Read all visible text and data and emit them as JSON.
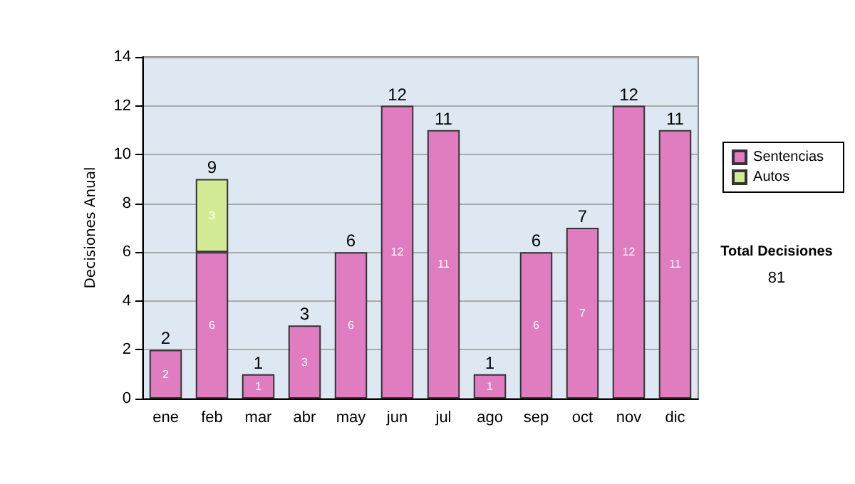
{
  "chart_data": {
    "type": "bar",
    "stacked": true,
    "ylabel": "Decisiones Anual",
    "categories": [
      "ene",
      "feb",
      "mar",
      "abr",
      "may",
      "jun",
      "jul",
      "ago",
      "sep",
      "oct",
      "nov",
      "dic"
    ],
    "series": [
      {
        "name": "Sentencias",
        "color": "#e07cc0",
        "values": [
          2,
          6,
          1,
          3,
          6,
          12,
          11,
          1,
          6,
          7,
          12,
          11
        ]
      },
      {
        "name": "Autos",
        "color": "#d4eb96",
        "values": [
          null,
          3,
          null,
          null,
          null,
          null,
          null,
          null,
          null,
          null,
          null,
          null
        ]
      }
    ],
    "totals": [
      "2",
      "9",
      "1",
      "3",
      "6",
      "12",
      "11",
      "1",
      "6",
      "7",
      "12",
      "11"
    ],
    "data_labels": true,
    "ylim": [
      0,
      14
    ],
    "yticks": [
      0,
      2,
      4,
      6,
      8,
      10,
      12,
      14
    ],
    "grid": "y",
    "legend": "right",
    "annotations": [
      "Total Decisiones",
      "81"
    ]
  }
}
